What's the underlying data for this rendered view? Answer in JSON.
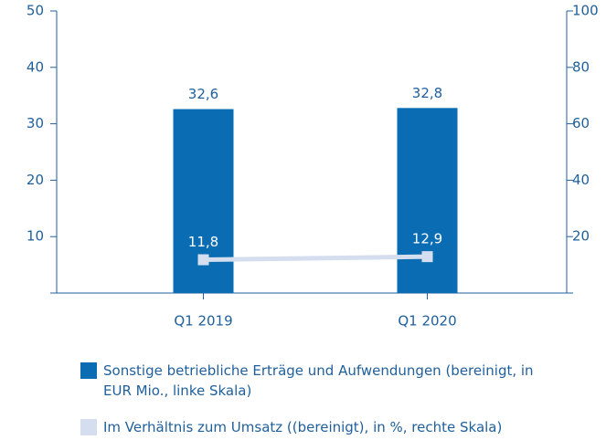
{
  "chart_data": {
    "type": "bar",
    "categories": [
      "Q1 2019",
      "Q1 2020"
    ],
    "series": [
      {
        "name": "Sonstige betriebliche Erträge und Aufwendungen (bereinigt, in EUR Mio., linke Skala)",
        "type": "bar",
        "color": "#0a6db3",
        "values": [
          32.6,
          32.8
        ],
        "value_labels": [
          "32,6",
          "32,8"
        ]
      },
      {
        "name": "Im Verhältnis zum Umsatz ((bereinigt), in %, rechte Skala)",
        "type": "line",
        "axis": "y2",
        "color": "#d5deef",
        "values": [
          11.8,
          12.9
        ],
        "value_labels": [
          "11,8",
          "12,9"
        ]
      }
    ],
    "ylim": [
      0,
      50
    ],
    "yticks": [
      10,
      20,
      30,
      40,
      50
    ],
    "y2lim": [
      0,
      100
    ],
    "y2ticks": [
      20,
      40,
      60,
      80,
      100
    ]
  }
}
